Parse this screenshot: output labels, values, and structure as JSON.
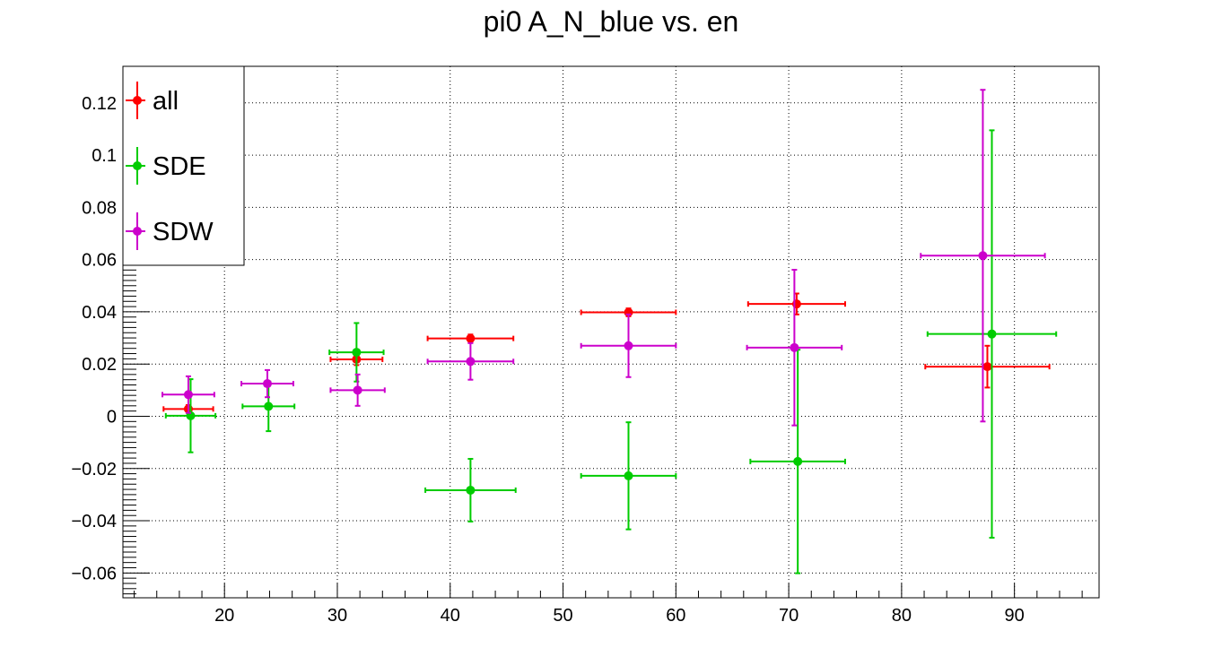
{
  "chart_data": {
    "type": "scatter",
    "title": "pi0 A_N_blue vs. en",
    "xlabel": "",
    "ylabel": "",
    "xlim": [
      11,
      97.5
    ],
    "ylim": [
      -0.0695,
      0.134
    ],
    "grid": true,
    "legend_position": "top-left",
    "x_ticks": [
      20,
      30,
      40,
      50,
      60,
      70,
      80,
      90
    ],
    "y_ticks": [
      -0.06,
      -0.04,
      -0.02,
      0,
      0.02,
      0.04,
      0.06,
      0.08,
      0.1,
      0.12
    ],
    "x_tick_labels": [
      "20",
      "30",
      "40",
      "50",
      "60",
      "70",
      "80",
      "90"
    ],
    "y_tick_labels": [
      "−0.06",
      "−0.04",
      "−0.02",
      "0",
      "0.02",
      "0.04",
      "0.06",
      "0.08",
      "0.1",
      "0.12"
    ],
    "series": [
      {
        "name": "all",
        "color": "#ff0000",
        "points": [
          {
            "x": 16.8,
            "y": 0.0028,
            "xerr": 2.2,
            "yerr": 0.0015
          },
          {
            "x": 31.7,
            "y": 0.0218,
            "xerr": 2.3,
            "yerr": 0.0022
          },
          {
            "x": 41.8,
            "y": 0.0298,
            "xerr": 3.8,
            "yerr": 0.0015
          },
          {
            "x": 55.8,
            "y": 0.0398,
            "xerr": 4.2,
            "yerr": 0.0015
          },
          {
            "x": 70.7,
            "y": 0.043,
            "xerr": 4.3,
            "yerr": 0.004
          },
          {
            "x": 87.6,
            "y": 0.019,
            "xerr": 5.5,
            "yerr": 0.008
          }
        ]
      },
      {
        "name": "SDE",
        "color": "#00cc00",
        "points": [
          {
            "x": 17.0,
            "y": 0.0002,
            "xerr": 2.2,
            "yerr": 0.014
          },
          {
            "x": 23.9,
            "y": 0.0038,
            "xerr": 2.3,
            "yerr": 0.0095
          },
          {
            "x": 31.7,
            "y": 0.0245,
            "xerr": 2.4,
            "yerr": 0.0112
          },
          {
            "x": 41.8,
            "y": -0.0283,
            "xerr": 4.0,
            "yerr": 0.012
          },
          {
            "x": 55.8,
            "y": -0.0228,
            "xerr": 4.2,
            "yerr": 0.0205
          },
          {
            "x": 70.8,
            "y": -0.0173,
            "xerr": 4.2,
            "yerr": 0.0428
          },
          {
            "x": 88.0,
            "y": 0.0315,
            "xerr": 5.7,
            "yerr": 0.078
          }
        ]
      },
      {
        "name": "SDW",
        "color": "#cc00cc",
        "points": [
          {
            "x": 16.8,
            "y": 0.0083,
            "xerr": 2.3,
            "yerr": 0.007
          },
          {
            "x": 23.8,
            "y": 0.0125,
            "xerr": 2.3,
            "yerr": 0.0052
          },
          {
            "x": 31.8,
            "y": 0.01,
            "xerr": 2.4,
            "yerr": 0.006
          },
          {
            "x": 41.8,
            "y": 0.021,
            "xerr": 3.8,
            "yerr": 0.007
          },
          {
            "x": 55.8,
            "y": 0.027,
            "xerr": 4.2,
            "yerr": 0.012
          },
          {
            "x": 70.5,
            "y": 0.0263,
            "xerr": 4.2,
            "yerr": 0.0298
          },
          {
            "x": 87.2,
            "y": 0.0615,
            "xerr": 5.5,
            "yerr": 0.0635
          }
        ]
      }
    ]
  }
}
